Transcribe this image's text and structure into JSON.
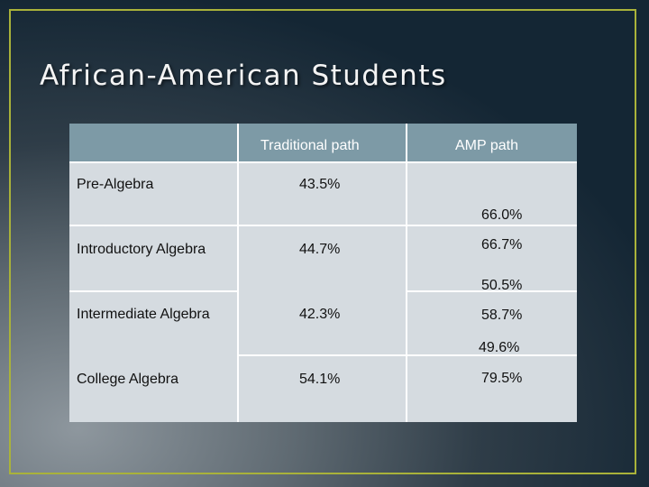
{
  "slide": {
    "title": "African-American Students"
  },
  "table": {
    "headers": [
      "",
      "Traditional path",
      "AMP path"
    ],
    "rows": [
      {
        "course": "Pre-Algebra",
        "traditional": "43.5%",
        "amp": [
          "66.0%"
        ]
      },
      {
        "course": "Introductory Algebra",
        "traditional": "44.7%",
        "amp": [
          "66.7%",
          "50.5%"
        ]
      },
      {
        "course": "Intermediate Algebra",
        "traditional": "42.3%",
        "amp": [
          "58.7%",
          "49.6%"
        ]
      },
      {
        "course": "College Algebra",
        "traditional": "54.1%",
        "amp": [
          "79.5%"
        ]
      }
    ]
  },
  "colors": {
    "header_bg": "#7d9aa6",
    "body_bg": "#d5dbe0",
    "frame_border": "#a9b23a"
  }
}
